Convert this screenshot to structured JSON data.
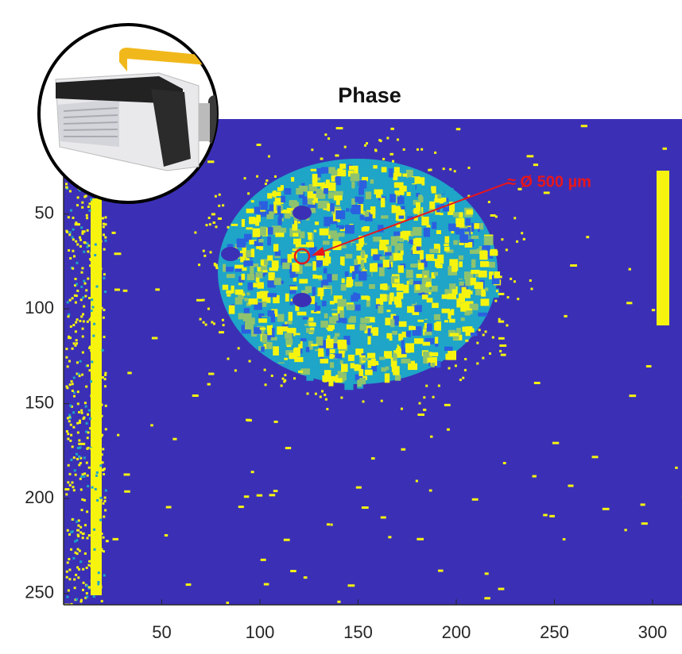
{
  "chart_data": {
    "type": "image",
    "title": "Phase",
    "xlim": [
      0,
      315
    ],
    "xticks": [
      50,
      100,
      150,
      200,
      250,
      300
    ],
    "ylim": [
      0,
      256
    ],
    "yticks": [
      50,
      100,
      150,
      200,
      250
    ],
    "y_reversed": true,
    "annotation": "≈ Ø 500 µm",
    "annotation_color": "#e8161b",
    "colormap": [
      "#3b30b5",
      "#2a5fe0",
      "#1ea5c8",
      "#8fc36e",
      "#f6f40f"
    ]
  }
}
